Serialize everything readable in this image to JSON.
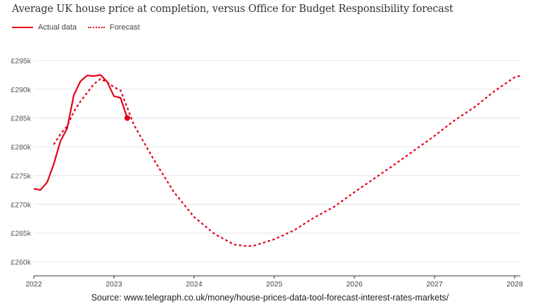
{
  "chart_data": {
    "type": "line",
    "title": "Average UK house price at completion, versus Office for Budget Responsibility forecast",
    "xlabel": "",
    "ylabel": "",
    "x_ticks": [
      "2022",
      "2023",
      "2024",
      "2025",
      "2026",
      "2027",
      "2028"
    ],
    "y_ticks": [
      "£260k",
      "£265k",
      "£270k",
      "£275k",
      "£280k",
      "£285k",
      "£290k",
      "£295k"
    ],
    "y_tick_values": [
      260,
      265,
      270,
      275,
      280,
      285,
      290,
      295
    ],
    "ylim": [
      258,
      297
    ],
    "xlim": [
      "2022-01",
      "2028-02"
    ],
    "grid": true,
    "legend_position": "top-left",
    "series": [
      {
        "name": "Actual data",
        "style": "solid",
        "color": "#e3001b",
        "end_marker": true,
        "points": [
          [
            "2022-01",
            272.7
          ],
          [
            "2022-02",
            272.5
          ],
          [
            "2022-03",
            273.8
          ],
          [
            "2022-04",
            277.0
          ],
          [
            "2022-05",
            281.0
          ],
          [
            "2022-06",
            283.2
          ],
          [
            "2022-07",
            289.0
          ],
          [
            "2022-08",
            291.4
          ],
          [
            "2022-09",
            292.4
          ],
          [
            "2022-10",
            292.3
          ],
          [
            "2022-11",
            292.5
          ],
          [
            "2022-12",
            291.3
          ],
          [
            "2023-01",
            288.8
          ],
          [
            "2023-02",
            288.5
          ],
          [
            "2023-03",
            285.0
          ]
        ]
      },
      {
        "name": "Forecast",
        "style": "dotted",
        "color": "#e3001b",
        "points": [
          [
            "2022-04",
            280.4
          ],
          [
            "2022-05",
            282.2
          ],
          [
            "2022-06",
            283.6
          ],
          [
            "2022-07",
            286.1
          ],
          [
            "2022-08",
            287.9
          ],
          [
            "2022-09",
            289.4
          ],
          [
            "2022-10",
            290.9
          ],
          [
            "2022-11",
            291.8
          ],
          [
            "2022-12",
            291.2
          ],
          [
            "2023-01",
            290.4
          ],
          [
            "2023-02",
            289.8
          ],
          [
            "2023-04",
            283.8
          ],
          [
            "2023-07",
            277.7
          ],
          [
            "2023-10",
            272.1
          ],
          [
            "2024-01",
            267.8
          ],
          [
            "2024-04",
            264.9
          ],
          [
            "2024-07",
            263.0
          ],
          [
            "2024-09",
            262.7
          ],
          [
            "2024-10",
            262.8
          ],
          [
            "2025-01",
            263.9
          ],
          [
            "2025-04",
            265.5
          ],
          [
            "2025-07",
            267.7
          ],
          [
            "2025-10",
            269.6
          ],
          [
            "2026-01",
            272.1
          ],
          [
            "2026-04",
            274.5
          ],
          [
            "2026-07",
            276.9
          ],
          [
            "2026-10",
            279.4
          ],
          [
            "2027-01",
            281.9
          ],
          [
            "2027-04",
            284.6
          ],
          [
            "2027-07",
            286.9
          ],
          [
            "2027-10",
            289.7
          ],
          [
            "2028-01",
            292.1
          ],
          [
            "2028-02",
            292.4
          ]
        ]
      }
    ]
  },
  "legend": {
    "actual": "Actual data",
    "forecast": "Forecast"
  },
  "source": "Source: www.telegraph.co.uk/money/house-prices-data-tool-forecast-interest-rates-markets/"
}
